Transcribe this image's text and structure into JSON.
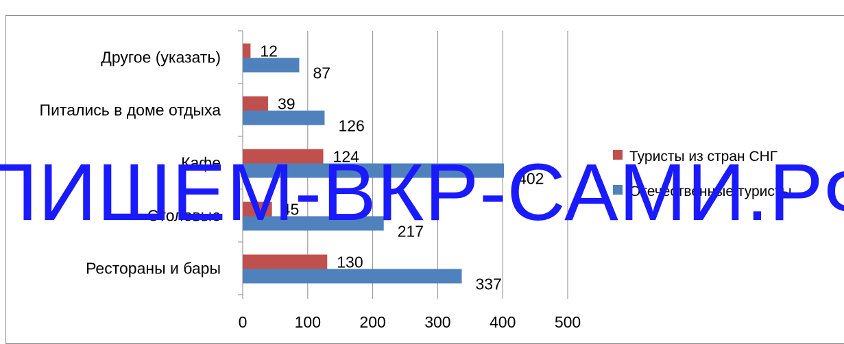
{
  "chart_data": {
    "type": "bar",
    "orientation": "horizontal",
    "categories": [
      "Рестораны и бары",
      "Столовые",
      "Кафе",
      "Питались в доме отдыха",
      "Другое  (указать)"
    ],
    "series": [
      {
        "name": "Отечественные туристы",
        "color": "#4f81bd",
        "values": [
          337,
          217,
          402,
          126,
          87
        ]
      },
      {
        "name": "Туристы из стран СНГ",
        "color": "#c0504d",
        "values": [
          130,
          45,
          124,
          39,
          12
        ]
      }
    ],
    "xlim": [
      0,
      500
    ],
    "xticks": [
      0,
      100,
      200,
      300,
      400,
      500
    ],
    "grid": true,
    "legend_position": "right"
  },
  "watermark": {
    "text": "ПИШЕМ-ВКР-САМИ.РФ",
    "color": "#1a1aff"
  }
}
